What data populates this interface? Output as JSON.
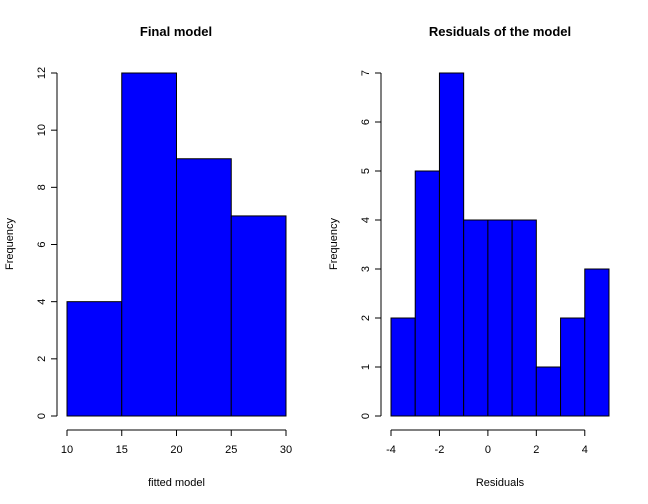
{
  "chart_data": [
    {
      "type": "bar",
      "title": "Final model",
      "xlabel": "fitted model",
      "ylabel": "Frequency",
      "bins": [
        [
          10,
          15
        ],
        [
          15,
          20
        ],
        [
          20,
          25
        ],
        [
          25,
          30
        ]
      ],
      "values": [
        4,
        12,
        9,
        7
      ],
      "xlim": [
        10,
        30
      ],
      "ylim": [
        0,
        12
      ],
      "xticks": [
        10,
        15,
        20,
        25,
        30
      ],
      "yticks": [
        0,
        2,
        4,
        6,
        8,
        10,
        12
      ],
      "bar_color": "#0000FF",
      "grid": false
    },
    {
      "type": "bar",
      "title": "Residuals of the model",
      "xlabel": "Residuals",
      "ylabel": "Frequency",
      "bins": [
        [
          -4,
          -3
        ],
        [
          -3,
          -2
        ],
        [
          -2,
          -1
        ],
        [
          -1,
          0
        ],
        [
          0,
          1
        ],
        [
          1,
          2
        ],
        [
          2,
          3
        ],
        [
          3,
          4
        ],
        [
          4,
          5
        ]
      ],
      "values": [
        2,
        5,
        7,
        4,
        4,
        4,
        1,
        2,
        3
      ],
      "xlim": [
        -4,
        5
      ],
      "ylim": [
        0,
        7
      ],
      "xticks": [
        -4,
        -2,
        0,
        2,
        4
      ],
      "yticks": [
        0,
        1,
        2,
        3,
        4,
        5,
        6,
        7
      ],
      "bar_color": "#0000FF",
      "grid": false
    }
  ]
}
